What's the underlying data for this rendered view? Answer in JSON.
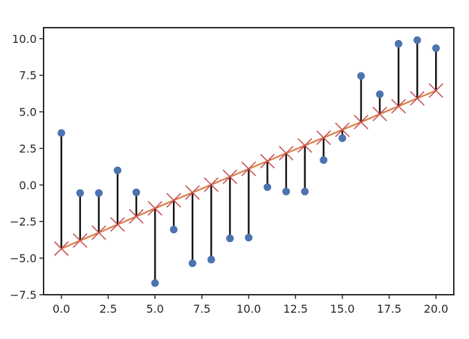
{
  "chart_data": {
    "type": "scatter",
    "title": "",
    "xlabel": "",
    "ylabel": "",
    "xlim": [
      -0.95,
      20.95
    ],
    "ylim": [
      -7.5,
      10.75
    ],
    "x_ticks": [
      0,
      2.5,
      5,
      7.5,
      10,
      12.5,
      15,
      17.5,
      20
    ],
    "x_tick_labels": [
      "0.0",
      "2.5",
      "5.0",
      "7.5",
      "10.0",
      "12.5",
      "15.0",
      "17.5",
      "20.0"
    ],
    "y_ticks": [
      -7.5,
      -5,
      -2.5,
      0,
      2.5,
      5,
      7.5,
      10
    ],
    "y_tick_labels": [
      "−7.5",
      "−5.0",
      "−2.5",
      "0.0",
      "2.5",
      "5.0",
      "7.5",
      "10.0"
    ],
    "grid": false,
    "legend": "none",
    "colors": {
      "observed": "#4c72b0",
      "fit_line": "#dd8452",
      "fitted_marker": "#c44e52",
      "residual": "#111111",
      "axes": "#262626"
    },
    "x": [
      0,
      1,
      2,
      3,
      4,
      5,
      6,
      7,
      8,
      9,
      10,
      11,
      12,
      13,
      14,
      15,
      16,
      17,
      18,
      19,
      20
    ],
    "observed": [
      3.55,
      -0.55,
      -0.55,
      1.0,
      -0.5,
      -6.7,
      -3.05,
      -5.35,
      -5.1,
      -3.65,
      -3.6,
      -0.15,
      -0.45,
      -0.45,
      1.7,
      3.2,
      7.45,
      6.2,
      9.65,
      9.9,
      9.35
    ],
    "fitted": [
      -4.35,
      -3.8,
      -3.26,
      -2.7,
      -2.15,
      -1.6,
      -1.05,
      -0.52,
      0.02,
      0.56,
      1.1,
      1.63,
      2.17,
      2.7,
      3.23,
      3.77,
      4.3,
      4.85,
      5.38,
      5.92,
      6.45
    ]
  }
}
